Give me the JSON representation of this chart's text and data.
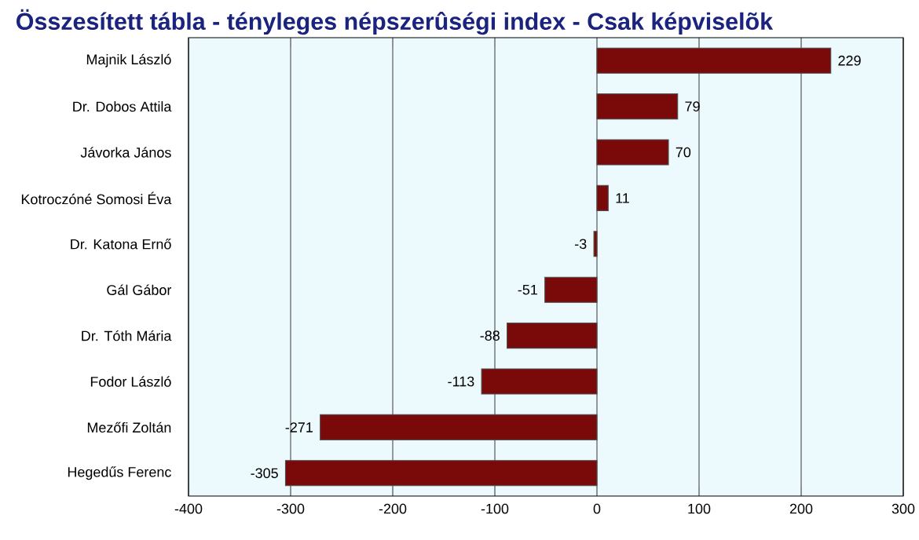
{
  "chart_data": {
    "type": "bar",
    "orientation": "horizontal",
    "title": "Összesített tábla - tényleges népszerûségi index - Csak képviselõk",
    "categories": [
      "Majnik László",
      "Dr. Dobos Attila",
      "Jávorka János",
      "Kotroczóné Somosi Éva",
      "Dr. Katona Ernő",
      "Gál Gábor",
      "Dr. Tóth Mária",
      "Fodor László",
      "Mezőfi Zoltán",
      "Hegedűs Ferenc"
    ],
    "values": [
      229,
      79,
      70,
      11,
      -3,
      -51,
      -88,
      -113,
      -271,
      -305
    ],
    "color": "#7a0a0a",
    "data_labels": true,
    "grid": "x",
    "xlim": [
      -400,
      300
    ],
    "xticks": [
      -400,
      -300,
      -200,
      -100,
      0,
      100,
      200,
      300
    ]
  }
}
